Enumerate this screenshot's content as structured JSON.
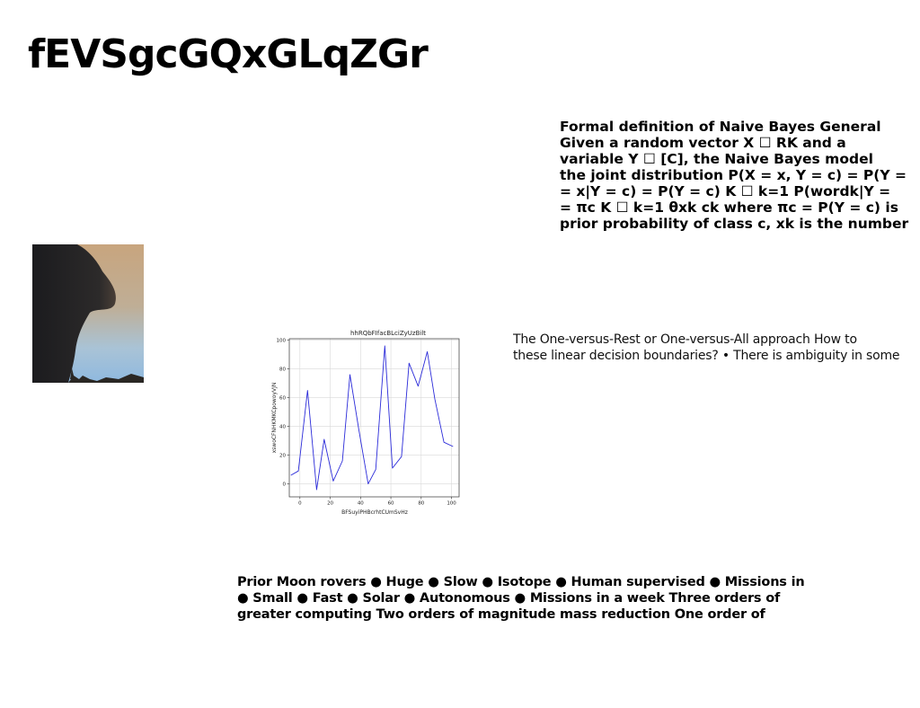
{
  "slide": {
    "title": "fEVSgcGQxGLqZGr"
  },
  "naive_bayes_text": {
    "lines": [
      "Formal definition of Naive Bayes General",
      "Given a random vector X ☐ RK and a",
      "variable Y ☐ [C], the Naive Bayes model",
      "the joint distribution P(X = x, Y = c) = P(Y =",
      "= x|Y = c) = P(Y = c) K ☐ k=1 P(wordk|Y =",
      "= πc K ☐ k=1 θxk ck where πc = P(Y = c) is",
      "prior probability of class c, xk is the number"
    ]
  },
  "ovr_text": {
    "lines": [
      "The One-versus-Rest or One-versus-All approach How to",
      "these linear decision boundaries? • There is ambiguity in some"
    ]
  },
  "bottom_text": {
    "lines": [
      "Prior Moon rovers ● Huge ● Slow ● Isotope ● Human supervised ● Missions in",
      "● Small ● Fast ● Solar ● Autonomous ● Missions in a week Three orders of",
      "greater computing Two orders of magnitude mass reduction One order of"
    ]
  },
  "chart_data": {
    "type": "line",
    "title": "hhRQbFIfacBLciZyUzBilt",
    "xlabel": "BFSuyiPHBcrhtCUmSvHz",
    "ylabel": "xswoCFNHKMKCpowoyVJN",
    "xlim": [
      -7,
      105
    ],
    "ylim": [
      -9,
      101
    ],
    "xticks": [
      0,
      20,
      40,
      60,
      80,
      100
    ],
    "yticks": [
      0,
      20,
      40,
      60,
      80,
      100
    ],
    "grid": true,
    "series": [
      {
        "color": "#2b2bd9",
        "x": [
          -6,
          -1,
          5,
          11,
          16,
          22,
          28,
          33,
          39,
          45,
          50,
          56,
          61,
          67,
          72,
          78,
          84,
          89,
          95,
          101
        ],
        "y": [
          6,
          9,
          65,
          -4,
          31,
          2,
          16,
          76,
          37,
          0,
          10,
          96,
          11,
          19,
          84,
          68,
          92,
          59,
          29,
          26
        ]
      }
    ]
  }
}
